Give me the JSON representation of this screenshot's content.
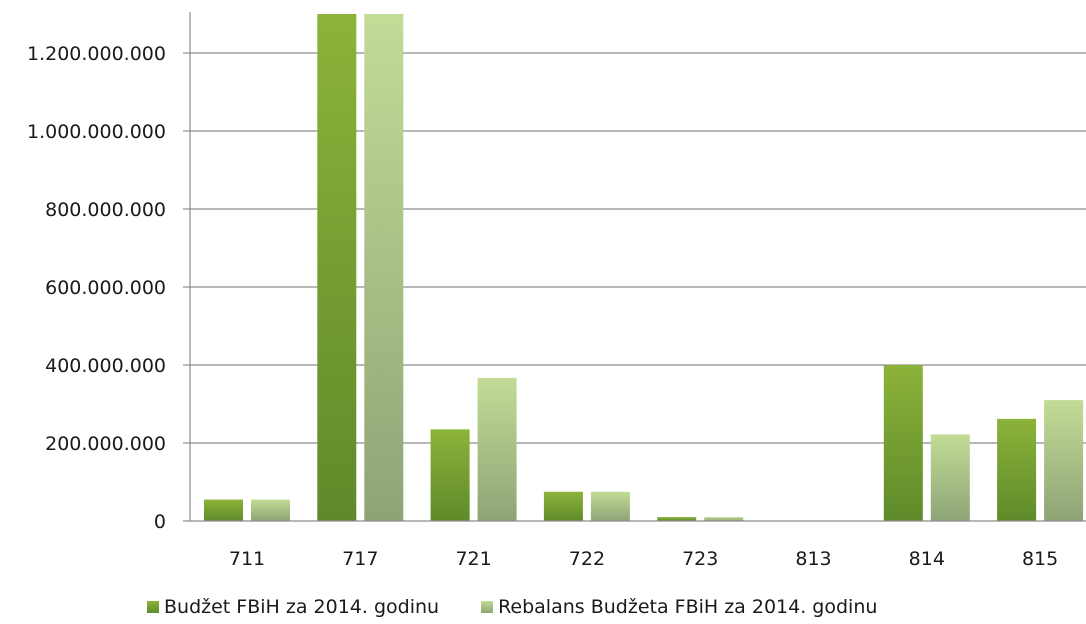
{
  "chart_data": {
    "type": "bar",
    "categories": [
      "711",
      "717",
      "721",
      "722",
      "723",
      "813",
      "814",
      "815"
    ],
    "series": [
      {
        "name": "Budžet FBiH za 2014. godinu",
        "values": [
          55000000,
          1300000000,
          235000000,
          75000000,
          10000000,
          0,
          400000000,
          262000000
        ],
        "color_top": "#8cb33a",
        "color_bottom": "#5e8a2a"
      },
      {
        "name": "Rebalans Budžeta FBiH za 2014. godinu",
        "values": [
          55000000,
          1300000000,
          367000000,
          75000000,
          10000000,
          0,
          222000000,
          310000000
        ],
        "color_top": "#c2dc96",
        "color_bottom": "#8ea476"
      }
    ],
    "y_ticks": [
      "0",
      "200.000.000",
      "400.000.000",
      "600.000.000",
      "800.000.000",
      "1.000.000.000",
      "1.200.000.000"
    ],
    "ylim": [
      0,
      1300000000
    ],
    "grid": true,
    "legend_position": "bottom",
    "xlabel": "",
    "ylabel": "",
    "title": ""
  }
}
